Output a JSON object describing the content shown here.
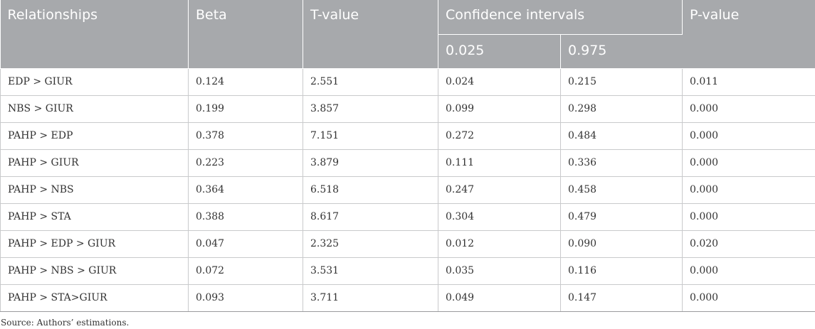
{
  "table": {
    "headers": {
      "relationships": "Relationships",
      "beta": "Beta",
      "t_value": "T-value",
      "confidence_intervals": "Confidence intervals",
      "ci_lower": "0.025",
      "ci_upper": "0.975",
      "p_value": "P-value"
    },
    "rows": [
      {
        "relationship": "EDP > GIUR",
        "beta": "0.124",
        "t_value": "2.551",
        "ci_lower": "0.024",
        "ci_upper": "0.215",
        "p_value": "0.011"
      },
      {
        "relationship": "NBS > GIUR",
        "beta": "0.199",
        "t_value": "3.857",
        "ci_lower": "0.099",
        "ci_upper": "0.298",
        "p_value": "0.000"
      },
      {
        "relationship": "PAHP > EDP",
        "beta": "0.378",
        "t_value": "7.151",
        "ci_lower": "0.272",
        "ci_upper": "0.484",
        "p_value": "0.000"
      },
      {
        "relationship": "PAHP > GIUR",
        "beta": "0.223",
        "t_value": "3.879",
        "ci_lower": "0.111",
        "ci_upper": "0.336",
        "p_value": "0.000"
      },
      {
        "relationship": "PAHP > NBS",
        "beta": "0.364",
        "t_value": "6.518",
        "ci_lower": "0.247",
        "ci_upper": "0.458",
        "p_value": "0.000"
      },
      {
        "relationship": "PAHP > STA",
        "beta": "0.388",
        "t_value": "8.617",
        "ci_lower": "0.304",
        "ci_upper": "0.479",
        "p_value": "0.000"
      },
      {
        "relationship": "PAHP > EDP > GIUR",
        "beta": "0.047",
        "t_value": "2.325",
        "ci_lower": "0.012",
        "ci_upper": "0.090",
        "p_value": "0.020"
      },
      {
        "relationship": "PAHP > NBS > GIUR",
        "beta": "0.072",
        "t_value": "3.531",
        "ci_lower": "0.035",
        "ci_upper": "0.116",
        "p_value": "0.000"
      },
      {
        "relationship": "PAHP > STA>GIUR",
        "beta": "0.093",
        "t_value": "3.711",
        "ci_lower": "0.049",
        "ci_upper": "0.147",
        "p_value": "0.000"
      }
    ]
  },
  "footnote": "Source: Authors’ estimations."
}
